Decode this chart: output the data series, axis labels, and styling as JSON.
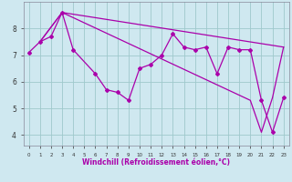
{
  "xlabel": "Windchill (Refroidissement éolien,°C)",
  "background_color": "#cfe8f0",
  "line_color": "#aa00aa",
  "grid_color": "#9ec8cc",
  "xlim": [
    -0.5,
    23.5
  ],
  "ylim": [
    3.6,
    9.0
  ],
  "xticks": [
    0,
    1,
    2,
    3,
    4,
    5,
    6,
    7,
    8,
    9,
    10,
    11,
    12,
    13,
    14,
    15,
    16,
    17,
    18,
    19,
    20,
    21,
    22,
    23
  ],
  "yticks": [
    4,
    5,
    6,
    7,
    8
  ],
  "series_detail": {
    "x": [
      0,
      1,
      2,
      3,
      4,
      6,
      7,
      8,
      9,
      10,
      11,
      12,
      13,
      14,
      15,
      16,
      17,
      18,
      19,
      20,
      21,
      22,
      23
    ],
    "y": [
      7.1,
      7.5,
      7.7,
      8.6,
      7.2,
      6.3,
      5.7,
      5.6,
      5.3,
      6.5,
      6.65,
      7.0,
      7.8,
      7.3,
      7.2,
      7.3,
      6.3,
      7.3,
      7.2,
      7.2,
      5.3,
      4.1,
      5.4
    ]
  },
  "series_upper": {
    "x": [
      1,
      3,
      23
    ],
    "y": [
      7.5,
      8.6,
      7.3
    ]
  },
  "series_lower": {
    "x": [
      1,
      3,
      20,
      21,
      22,
      23
    ],
    "y": [
      7.5,
      8.6,
      5.3,
      4.1,
      5.4,
      7.3
    ]
  }
}
